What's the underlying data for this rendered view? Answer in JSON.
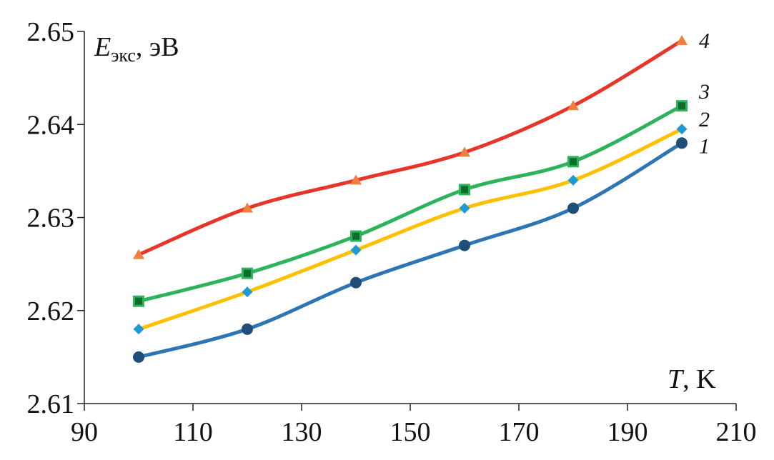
{
  "chart_data": {
    "type": "line",
    "x": [
      100,
      120,
      140,
      160,
      180,
      200
    ],
    "xlim": [
      90,
      210
    ],
    "ylim": [
      2.61,
      2.65
    ],
    "x_ticks": [
      "90",
      "110",
      "130",
      "150",
      "170",
      "190",
      "210"
    ],
    "y_ticks": [
      "2.61",
      "2.62",
      "2.63",
      "2.64",
      "2.65"
    ],
    "ylabel": {
      "main": "E",
      "sub": "экс",
      "unit": ", эВ"
    },
    "xlabel": {
      "main": "T",
      "unit": ", K"
    },
    "grid": false,
    "series": [
      {
        "label": "1",
        "values": [
          2.615,
          2.618,
          2.623,
          2.627,
          2.631,
          2.638
        ],
        "color": "#2E75B6",
        "marker": "circle",
        "marker_color": "#1F4E79"
      },
      {
        "label": "2",
        "values": [
          2.618,
          2.622,
          2.6265,
          2.631,
          2.634,
          2.6395
        ],
        "color": "#FFC000",
        "marker": "diamond",
        "marker_color": "#1E9BD7"
      },
      {
        "label": "3",
        "values": [
          2.621,
          2.624,
          2.628,
          2.633,
          2.636,
          2.642
        ],
        "color": "#2DB35C",
        "marker": "square",
        "marker_color": "#0E6B2A"
      },
      {
        "label": "4",
        "values": [
          2.626,
          2.631,
          2.634,
          2.637,
          2.642,
          2.649
        ],
        "color": "#E8352A",
        "marker": "triangle",
        "marker_color": "#F08040"
      }
    ]
  }
}
